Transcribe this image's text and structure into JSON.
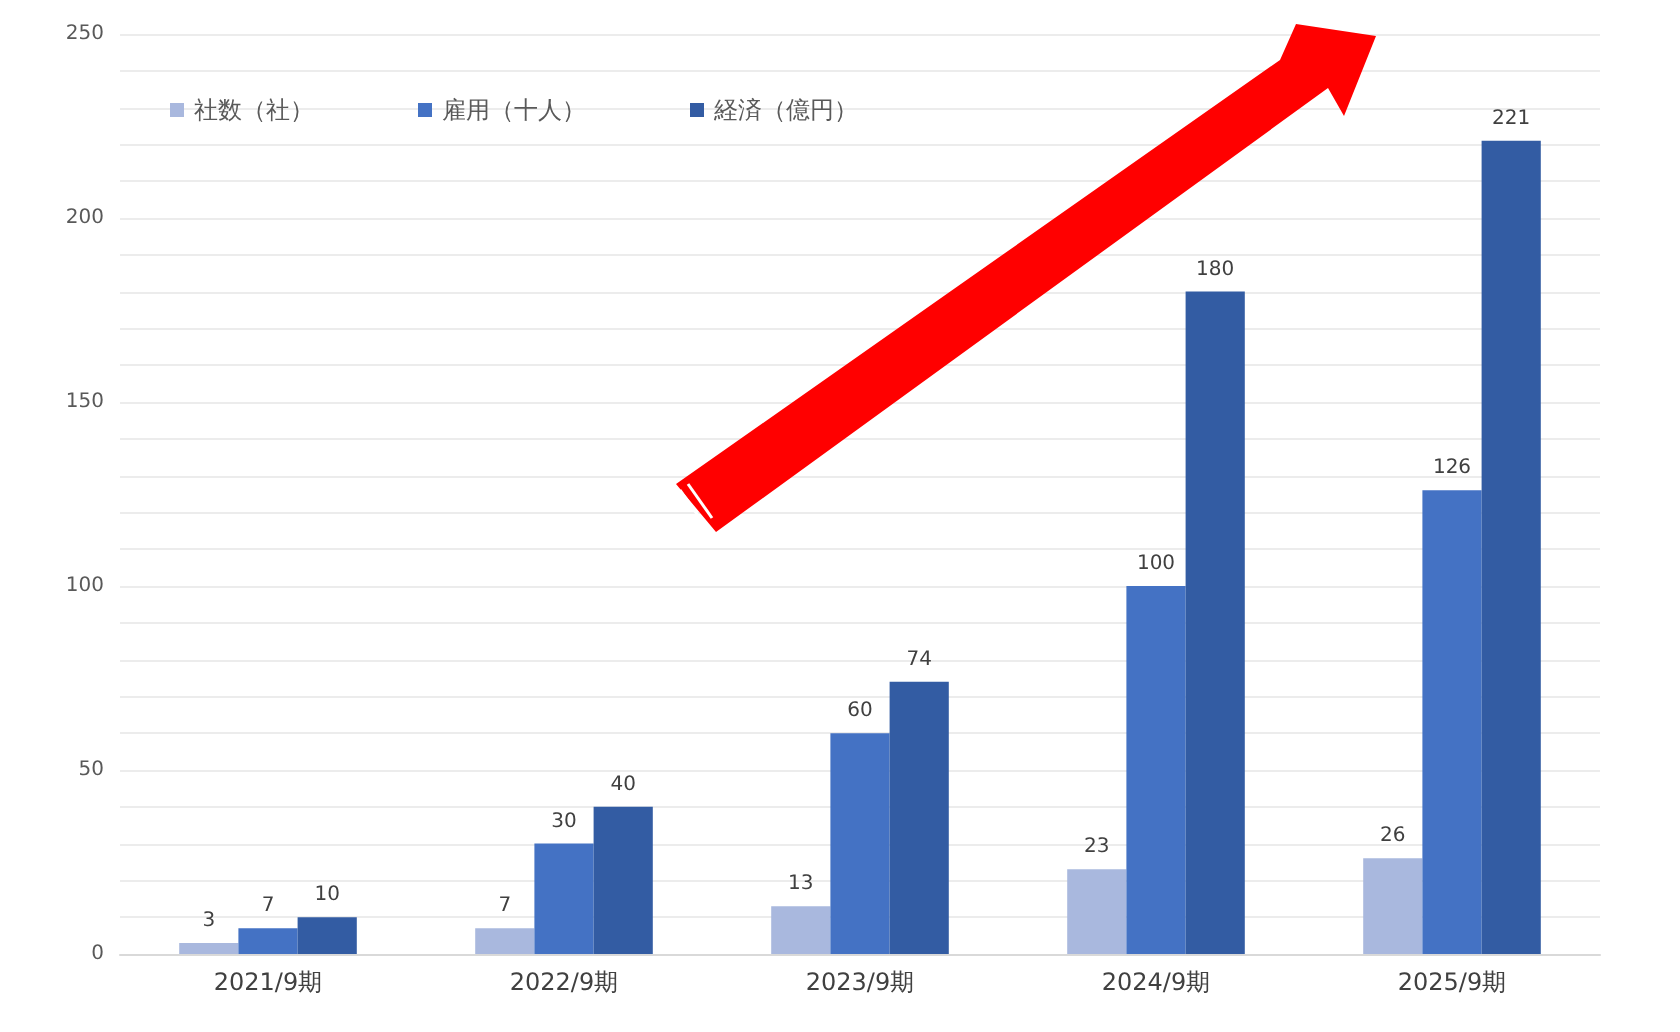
{
  "chart_data": {
    "type": "bar",
    "categories": [
      "2021/9期",
      "2022/9期",
      "2023/9期",
      "2024/9期",
      "2025/9期"
    ],
    "series": [
      {
        "name": "社数（社）",
        "color": "#a9b8de",
        "values": [
          3,
          7,
          13,
          23,
          26
        ]
      },
      {
        "name": "雇用（十人）",
        "color": "#4472c4",
        "values": [
          7,
          30,
          60,
          100,
          126
        ]
      },
      {
        "name": "経済（億円）",
        "color": "#335ca3",
        "values": [
          10,
          40,
          74,
          180,
          221
        ]
      }
    ],
    "ylim": [
      0,
      250
    ],
    "yticks": [
      0,
      {
        "value": 10,
        "label": null
      },
      {
        "value": 20,
        "label": null
      },
      {
        "value": 30,
        "label": null
      },
      {
        "value": 40,
        "label": null
      },
      50,
      {
        "value": 60,
        "label": null
      },
      {
        "value": 70,
        "label": null
      },
      {
        "value": 80,
        "label": null
      },
      {
        "value": 90,
        "label": null
      },
      100,
      {
        "value": 110,
        "label": null
      },
      {
        "value": 120,
        "label": null
      },
      {
        "value": 130,
        "label": null
      },
      {
        "value": 140,
        "label": null
      },
      150,
      {
        "value": 160,
        "label": null
      },
      {
        "value": 170,
        "label": null
      },
      {
        "value": 180,
        "label": null
      },
      {
        "value": 190,
        "label": null
      },
      200,
      {
        "value": 210,
        "label": null
      },
      {
        "value": 220,
        "label": null
      },
      {
        "value": 230,
        "label": null
      },
      {
        "value": 240,
        "label": null
      },
      250
    ],
    "grid": true,
    "legend": "top left",
    "data_labels": true
  }
}
